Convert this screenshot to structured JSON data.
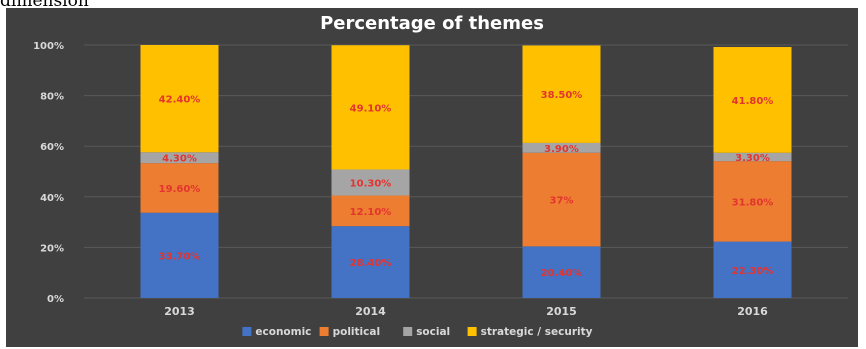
{
  "page_text": "dimension",
  "chart_data": {
    "type": "bar",
    "stacked": true,
    "title": "Percentage of themes",
    "categories": [
      "2013",
      "2014",
      "2015",
      "2016"
    ],
    "ylim": [
      0,
      100
    ],
    "y_ticks": [
      "0%",
      "20%",
      "40%",
      "60%",
      "80%",
      "100%"
    ],
    "grid": true,
    "legend_position": "bottom",
    "series": [
      {
        "name": "economic",
        "color": "#4472C4",
        "values": [
          33.7,
          28.4,
          20.4,
          22.3
        ],
        "labels": [
          "33.70%",
          "28.40%",
          "20.40%",
          "22.30%"
        ]
      },
      {
        "name": "political",
        "color": "#ED7D31",
        "values": [
          19.6,
          12.1,
          37.0,
          31.8
        ],
        "labels": [
          "19.60%",
          "12.10%",
          "37%",
          "31.80%"
        ]
      },
      {
        "name": "social",
        "color": "#A5A5A5",
        "values": [
          4.3,
          10.3,
          3.9,
          3.3
        ],
        "labels": [
          "4.30%",
          "10.30%",
          "3.90%",
          "3.30%"
        ]
      },
      {
        "name": "strategic / security",
        "color": "#FFC000",
        "values": [
          42.4,
          49.1,
          38.5,
          41.8
        ],
        "labels": [
          "42.40%",
          "49.10%",
          "38.50%",
          "41.80%"
        ]
      }
    ],
    "colors": {
      "panel_bg": "#404040",
      "text": "#d9d9d9",
      "title": "#ffffff",
      "grid": "#595959",
      "data_label": "#e3342f"
    }
  }
}
